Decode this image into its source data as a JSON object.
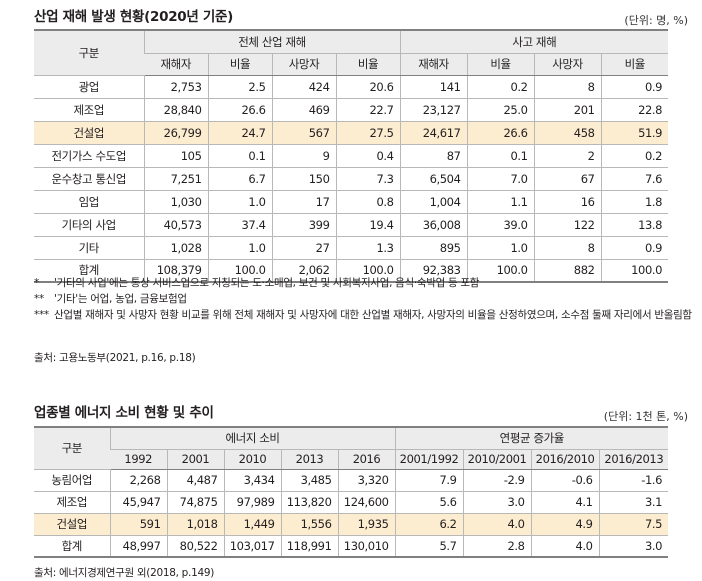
{
  "table1": {
    "title": "산업 재해 발생 현황(2020년 기준)",
    "unit": "(단위: 명, %)",
    "header_row_label": "구분",
    "group1": "전체 산업 재해",
    "group2": "사고 재해",
    "subcols": [
      "재해자",
      "비율",
      "사망자",
      "비율",
      "재해자",
      "비율",
      "사망자",
      "비율"
    ],
    "rows": [
      {
        "label": "광업",
        "values": [
          "2,753",
          "2.5",
          "424",
          "20.6",
          "141",
          "0.2",
          "8",
          "0.9"
        ]
      },
      {
        "label": "제조업",
        "values": [
          "28,840",
          "26.6",
          "469",
          "22.7",
          "23,127",
          "25.0",
          "201",
          "22.8"
        ]
      },
      {
        "label": "건설업",
        "values": [
          "26,799",
          "24.7",
          "567",
          "27.5",
          "24,617",
          "26.6",
          "458",
          "51.9"
        ]
      },
      {
        "label": "전기가스 수도업",
        "values": [
          "105",
          "0.1",
          "9",
          "0.4",
          "87",
          "0.1",
          "2",
          "0.2"
        ]
      },
      {
        "label": "운수창고 통신업",
        "values": [
          "7,251",
          "6.7",
          "150",
          "7.3",
          "6,504",
          "7.0",
          "67",
          "7.6"
        ]
      },
      {
        "label": "임업",
        "values": [
          "1,030",
          "1.0",
          "17",
          "0.8",
          "1,004",
          "1.1",
          "16",
          "1.8"
        ]
      },
      {
        "label": "기타의 사업",
        "values": [
          "40,573",
          "37.4",
          "399",
          "19.4",
          "36,008",
          "39.0",
          "122",
          "13.8"
        ]
      },
      {
        "label": "기타",
        "values": [
          "1,028",
          "1.0",
          "27",
          "1.3",
          "895",
          "1.0",
          "8",
          "0.9"
        ]
      },
      {
        "label": "합계",
        "values": [
          "108,379",
          "100.0",
          "2,062",
          "100.0",
          "92,383",
          "100.0",
          "882",
          "100.0"
        ]
      }
    ]
  },
  "notes": [
    {
      "mark": "*",
      "text": "'기타의 사업'에는 통상 서비스업으로 지칭되는 도·소매업, 보건 및 사회복지사업, 음식·숙박업 등 포함"
    },
    {
      "mark": "**",
      "text": "'기타'는 어업, 농업, 금융보험업"
    },
    {
      "mark": "***",
      "text": "산업별 재해자 및 사망자 현황 비교를 위해 전체 재해자 및 사망자에 대한 산업별 재해자, 사망자의 비율을 산정하였으며, 소수점 둘째 자리에서 반올림함"
    }
  ],
  "source1": "출처: 고용노동부(2021, p.16, p.18)",
  "table2": {
    "title": "업종별 에너지 소비 현황 및 추이",
    "unit": "(단위: 1천 톤, %)",
    "header_row_label": "구분",
    "group1": "에너지 소비",
    "group2": "연평균 증가율",
    "subcols": [
      "1992",
      "2001",
      "2010",
      "2013",
      "2016",
      "2001/1992",
      "2010/2001",
      "2016/2010",
      "2016/2013"
    ],
    "rows": [
      {
        "label": "농림어업",
        "values": [
          "2,268",
          "4,487",
          "3,434",
          "3,485",
          "3,320",
          "7.9",
          "-2.9",
          "-0.6",
          "-1.6"
        ]
      },
      {
        "label": "제조업",
        "values": [
          "45,947",
          "74,875",
          "97,989",
          "113,820",
          "124,600",
          "5.6",
          "3.0",
          "4.1",
          "3.1"
        ]
      },
      {
        "label": "건설업",
        "values": [
          "591",
          "1,018",
          "1,449",
          "1,556",
          "1,935",
          "6.2",
          "4.0",
          "4.9",
          "7.5"
        ]
      },
      {
        "label": "합계",
        "values": [
          "48,997",
          "80,522",
          "103,017",
          "118,991",
          "130,010",
          "5.7",
          "2.8",
          "4.0",
          "3.0"
        ]
      }
    ]
  },
  "source2": "출처: 에너지경제연구원 외(2018, p.149)"
}
